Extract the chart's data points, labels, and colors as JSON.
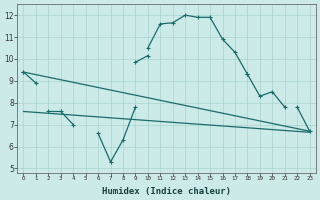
{
  "title": "",
  "xlabel": "Humidex (Indice chaleur)",
  "ylabel": "",
  "background_color": "#cceae7",
  "grid_color": "#aad4d0",
  "line_color": "#1a6b6b",
  "x_values": [
    0,
    1,
    2,
    3,
    4,
    5,
    6,
    7,
    8,
    9,
    10,
    11,
    12,
    13,
    14,
    15,
    16,
    17,
    18,
    19,
    20,
    21,
    22,
    23
  ],
  "line1": [
    9.4,
    8.9,
    null,
    null,
    null,
    null,
    null,
    null,
    null,
    null,
    10.5,
    11.6,
    11.65,
    12.0,
    11.9,
    11.9,
    10.9,
    10.3,
    9.3,
    null,
    null,
    null,
    null,
    null
  ],
  "line2": [
    9.4,
    null,
    null,
    null,
    null,
    null,
    null,
    null,
    null,
    9.85,
    10.15,
    null,
    null,
    null,
    null,
    null,
    null,
    null,
    9.3,
    8.3,
    8.5,
    7.8,
    null,
    null
  ],
  "line3": [
    null,
    null,
    7.6,
    7.6,
    7.0,
    null,
    6.6,
    5.3,
    6.3,
    7.8,
    null,
    null,
    null,
    null,
    null,
    null,
    null,
    null,
    null,
    null,
    null,
    null,
    7.8,
    6.7
  ],
  "line4_straight1": [
    [
      0,
      9.4
    ],
    [
      23,
      6.7
    ]
  ],
  "line4_straight2": [
    [
      0,
      7.6
    ],
    [
      23,
      6.65
    ]
  ],
  "ylim": [
    4.8,
    12.5
  ],
  "xlim": [
    -0.5,
    23.5
  ],
  "yticks": [
    5,
    6,
    7,
    8,
    9,
    10,
    11,
    12
  ],
  "xtick_labels": [
    "0",
    "1",
    "2",
    "3",
    "4",
    "5",
    "6",
    "7",
    "8",
    "9",
    "10",
    "11",
    "12",
    "13",
    "14",
    "15",
    "16",
    "17",
    "18",
    "19",
    "20",
    "21",
    "22",
    "23"
  ]
}
